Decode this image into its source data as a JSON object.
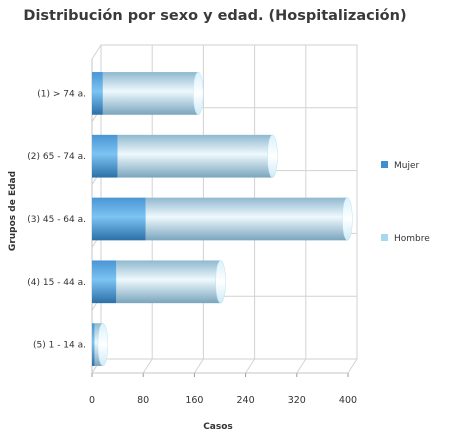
{
  "chart_data": {
    "type": "bar",
    "orientation": "horizontal",
    "stacked": true,
    "title": "Distribución por sexo y edad. (Hospitalización)",
    "xlabel": "Casos",
    "ylabel": "Grupos de Edad",
    "categories": [
      "(1) > 74 a.",
      "(2) 65 - 74 a.",
      "(3) 45 - 64 a.",
      "(4) 15 - 44 a.",
      "(5) 1 - 14 a."
    ],
    "series": [
      {
        "name": "Mujer",
        "values": [
          17,
          40,
          84,
          38,
          4
        ],
        "color": "#3d8fd0"
      },
      {
        "name": "Hombre",
        "values": [
          149,
          242,
          315,
          163,
          13
        ],
        "color": "#a8d8f0"
      }
    ],
    "xlim": [
      0,
      400
    ],
    "xticks": [
      0,
      80,
      160,
      240,
      320,
      400
    ],
    "grid": true,
    "legend_position": "right"
  }
}
